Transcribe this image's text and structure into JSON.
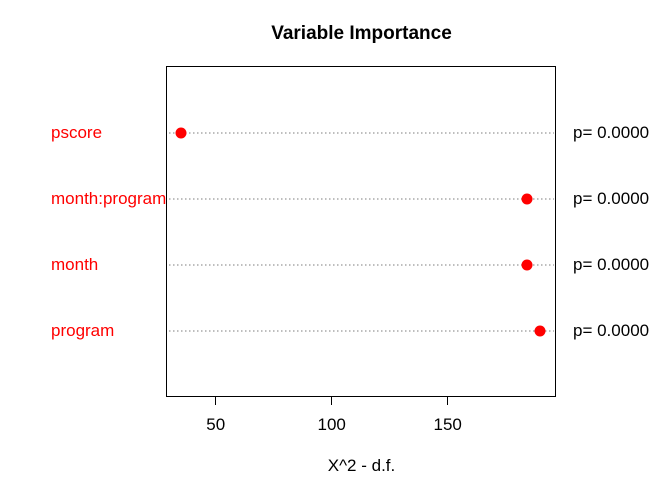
{
  "chart_data": {
    "type": "scatter",
    "title": "Variable Importance",
    "xlabel": "X^2 - d.f.",
    "ylabel": "",
    "categories": [
      "pscore",
      "month:program",
      "month",
      "program"
    ],
    "values": [
      35,
      184,
      184,
      190
    ],
    "point_labels": [
      "p= 0.0000",
      "p= 0.0000",
      "p= 0.0000",
      "p= 0.0000"
    ],
    "xticks": [
      50,
      100,
      150
    ],
    "xlim": [
      29,
      196.7
    ],
    "grid": "dotted horizontal reference line per category",
    "legend_position": "none",
    "colors": {
      "point": "#ff0000",
      "category_label": "#ff0000",
      "grid_line": "#bebebe",
      "text": "#000000",
      "box_border": "#000000",
      "background": "#ffffff"
    }
  }
}
